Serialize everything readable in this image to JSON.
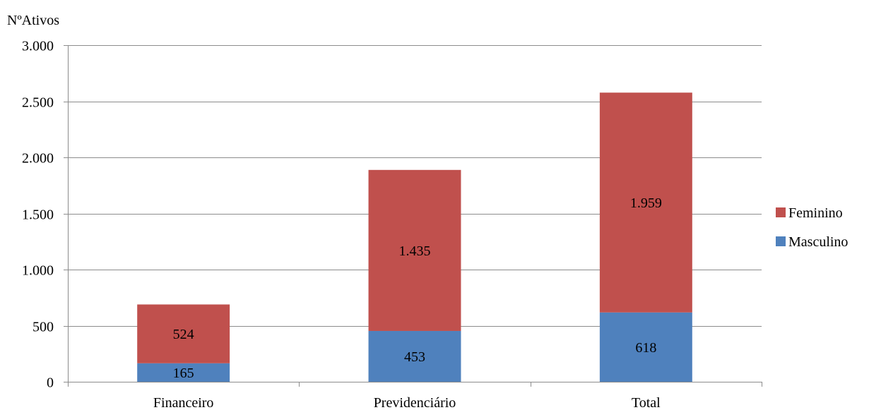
{
  "chart_data": {
    "type": "bar",
    "stacked": true,
    "title": "",
    "xlabel": "",
    "ylabel": "NºAtivos",
    "categories": [
      "Financeiro",
      "Previdenciário",
      "Total"
    ],
    "series": [
      {
        "name": "Masculino",
        "values": [
          165,
          453,
          618
        ],
        "labels": [
          "165",
          "453",
          "618"
        ],
        "color": "#4f81bd"
      },
      {
        "name": "Feminino",
        "values": [
          524,
          1435,
          1959
        ],
        "labels": [
          "524",
          "1.435",
          "1.959"
        ],
        "color": "#c0504d"
      }
    ],
    "ylim": [
      0,
      3000
    ],
    "yticks": [
      0,
      500,
      1000,
      1500,
      2000,
      2500,
      3000
    ],
    "ytick_labels": [
      "0",
      "500",
      "1.000",
      "1.500",
      "2.000",
      "2.500",
      "3.000"
    ],
    "grid": true,
    "legend_position": "right"
  }
}
